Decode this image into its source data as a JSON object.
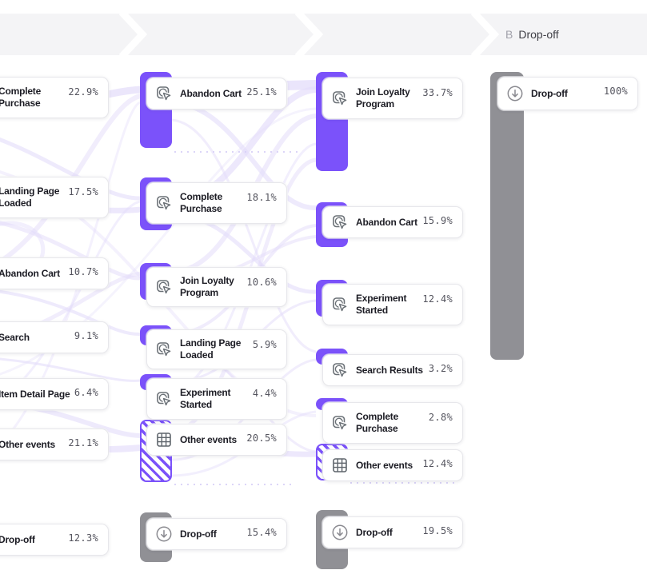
{
  "colors": {
    "accent": "#7B52FA",
    "dropoff_gray": "#909095",
    "flow": "#E3DCFA",
    "header_bg": "#F4F4F6"
  },
  "header": {
    "steps": [
      {
        "label": ""
      },
      {
        "label": ""
      },
      {
        "label": ""
      },
      {
        "prefix": "B",
        "label": "Drop-off"
      }
    ]
  },
  "columns": [
    {
      "nodes": [
        {
          "type": "event",
          "label": "Complete Purchase",
          "value": "22.9%"
        },
        {
          "type": "event",
          "label": "Landing Page Loaded",
          "value": "17.5%"
        },
        {
          "type": "event",
          "label": "Abandon Cart",
          "value": "10.7%"
        },
        {
          "type": "event",
          "label": "Search",
          "value": "9.1%"
        },
        {
          "type": "event",
          "label": "Item Detail Page",
          "value": "6.4%"
        },
        {
          "type": "other",
          "label": "Other events",
          "value": "21.1%"
        },
        {
          "type": "dropoff",
          "label": "Drop-off",
          "value": "12.3%"
        }
      ]
    },
    {
      "nodes": [
        {
          "type": "event",
          "label": "Abandon Cart",
          "value": "25.1%"
        },
        {
          "type": "event",
          "label": "Complete Purchase",
          "value": "18.1%"
        },
        {
          "type": "event",
          "label": "Join Loyalty Program",
          "value": "10.6%"
        },
        {
          "type": "event",
          "label": "Landing Page Loaded",
          "value": "5.9%"
        },
        {
          "type": "event",
          "label": "Experiment Started",
          "value": "4.4%"
        },
        {
          "type": "other",
          "label": "Other events",
          "value": "20.5%"
        },
        {
          "type": "dropoff",
          "label": "Drop-off",
          "value": "15.4%"
        }
      ]
    },
    {
      "nodes": [
        {
          "type": "event",
          "label": "Join Loyalty Program",
          "value": "33.7%"
        },
        {
          "type": "event",
          "label": "Abandon Cart",
          "value": "15.9%"
        },
        {
          "type": "event",
          "label": "Experiment Started",
          "value": "12.4%"
        },
        {
          "type": "event",
          "label": "Search Results",
          "value": "3.2%"
        },
        {
          "type": "event",
          "label": "Complete Purchase",
          "value": "2.8%"
        },
        {
          "type": "other",
          "label": "Other events",
          "value": "12.4%"
        },
        {
          "type": "dropoff",
          "label": "Drop-off",
          "value": "19.5%"
        }
      ]
    },
    {
      "nodes": [
        {
          "type": "dropoff",
          "label": "Drop-off",
          "value": "100%"
        }
      ]
    }
  ],
  "chart_data": {
    "type": "sankey",
    "title": "",
    "legend_position": "none",
    "steps": [
      {
        "step": 1,
        "nodes": [
          {
            "name": "Complete Purchase",
            "pct": 22.9
          },
          {
            "name": "Landing Page Loaded",
            "pct": 17.5
          },
          {
            "name": "Abandon Cart",
            "pct": 10.7
          },
          {
            "name": "Search",
            "pct": 9.1
          },
          {
            "name": "Item Detail Page",
            "pct": 6.4
          },
          {
            "name": "Other events",
            "pct": 21.1
          },
          {
            "name": "Drop-off",
            "pct": 12.3
          }
        ]
      },
      {
        "step": 2,
        "nodes": [
          {
            "name": "Abandon Cart",
            "pct": 25.1
          },
          {
            "name": "Complete Purchase",
            "pct": 18.1
          },
          {
            "name": "Join Loyalty Program",
            "pct": 10.6
          },
          {
            "name": "Landing Page Loaded",
            "pct": 5.9
          },
          {
            "name": "Experiment Started",
            "pct": 4.4
          },
          {
            "name": "Other events",
            "pct": 20.5
          },
          {
            "name": "Drop-off",
            "pct": 15.4
          }
        ]
      },
      {
        "step": 3,
        "nodes": [
          {
            "name": "Join Loyalty Program",
            "pct": 33.7
          },
          {
            "name": "Abandon Cart",
            "pct": 15.9
          },
          {
            "name": "Experiment Started",
            "pct": 12.4
          },
          {
            "name": "Search Results",
            "pct": 3.2
          },
          {
            "name": "Complete Purchase",
            "pct": 2.8
          },
          {
            "name": "Other events",
            "pct": 12.4
          },
          {
            "name": "Drop-off",
            "pct": 19.5
          }
        ]
      },
      {
        "step": 4,
        "nodes": [
          {
            "name": "Drop-off",
            "pct": 100
          }
        ]
      }
    ]
  }
}
